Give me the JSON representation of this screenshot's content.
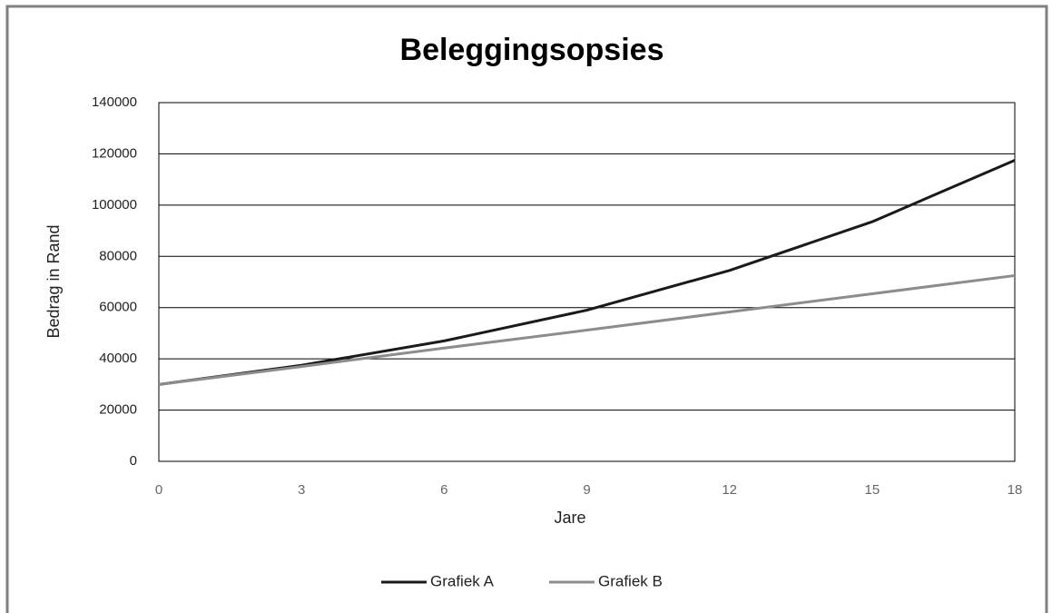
{
  "chart_data": {
    "type": "line",
    "title": "Beleggingsopsies",
    "xlabel": "Jare",
    "ylabel": "Bedrag in Rand",
    "x": [
      0,
      3,
      6,
      9,
      12,
      15,
      18
    ],
    "series": [
      {
        "name": "Grafiek A",
        "color": "#1a1a1a",
        "values": [
          30000,
          37500,
          47000,
          59000,
          74500,
          93500,
          117500
        ]
      },
      {
        "name": "Grafiek B",
        "color": "#8c8c8c",
        "values": [
          30000,
          37000,
          44200,
          51200,
          58300,
          65400,
          72500
        ]
      }
    ],
    "xlim": [
      0,
      18
    ],
    "xticks": [
      0,
      3,
      6,
      9,
      12,
      15,
      18
    ],
    "ylim": [
      0,
      140000
    ],
    "yticks": [
      0,
      20000,
      40000,
      60000,
      80000,
      100000,
      120000,
      140000
    ],
    "grid": true,
    "legend": "bottom"
  }
}
